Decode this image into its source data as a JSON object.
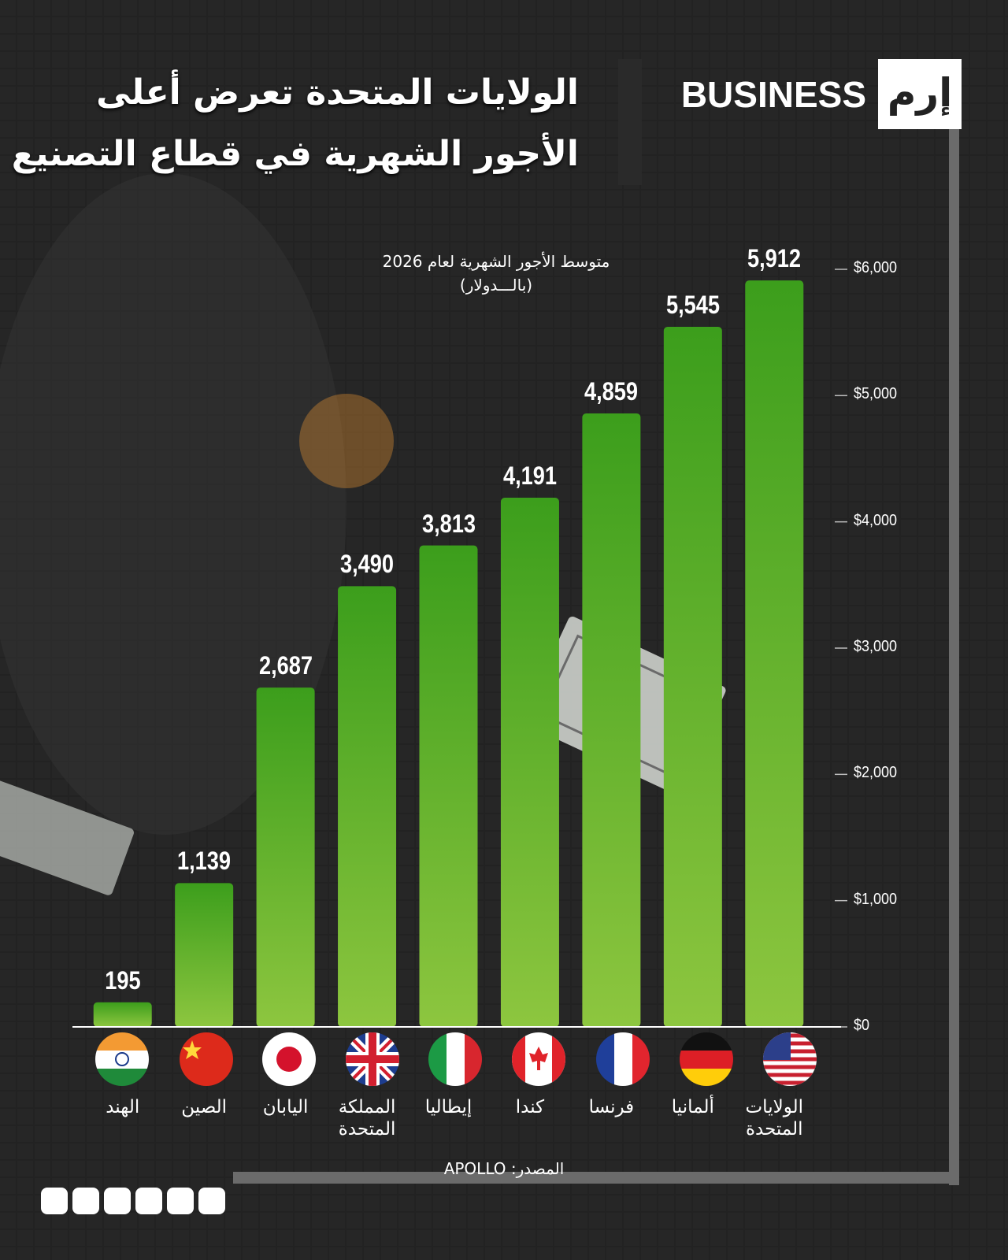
{
  "brand": {
    "name": "BUSINESS",
    "logo": "إرم"
  },
  "chart_data": {
    "type": "bar",
    "title": [
      "الولايات المتحدة تعرض أعلى",
      "الأجور الشهرية في قطاع التصنيع"
    ],
    "subtitle": "متوسط الأجور الشهرية لعام 2026",
    "unit": "(بالـــدولار)",
    "categories": [
      "الهند",
      "الصين",
      "اليابان",
      "المملكة المتحدة",
      "إيطاليا",
      "كندا",
      "فرنسا",
      "ألمانيا",
      "الولايات المتحدة"
    ],
    "values": [
      195,
      1139,
      2687,
      3490,
      3813,
      4191,
      4859,
      5545,
      5912
    ],
    "value_labels": [
      "195",
      "1,139",
      "2,687",
      "3,490",
      "3,813",
      "4,191",
      "4,859",
      "5,545",
      "5,912"
    ],
    "color": "#3c9e1c",
    "ylim": [
      0,
      6000
    ],
    "yticks": [
      {
        "value": 0,
        "label": "$0"
      },
      {
        "value": 1000,
        "label": "$1,000"
      },
      {
        "value": 2000,
        "label": "$2,000"
      },
      {
        "value": 3000,
        "label": "$3,000"
      },
      {
        "value": 4000,
        "label": "$4,000"
      },
      {
        "value": 5000,
        "label": "$5,000"
      },
      {
        "value": 6000,
        "label": "$6,000"
      }
    ],
    "source": "المصدر: APOLLO"
  }
}
